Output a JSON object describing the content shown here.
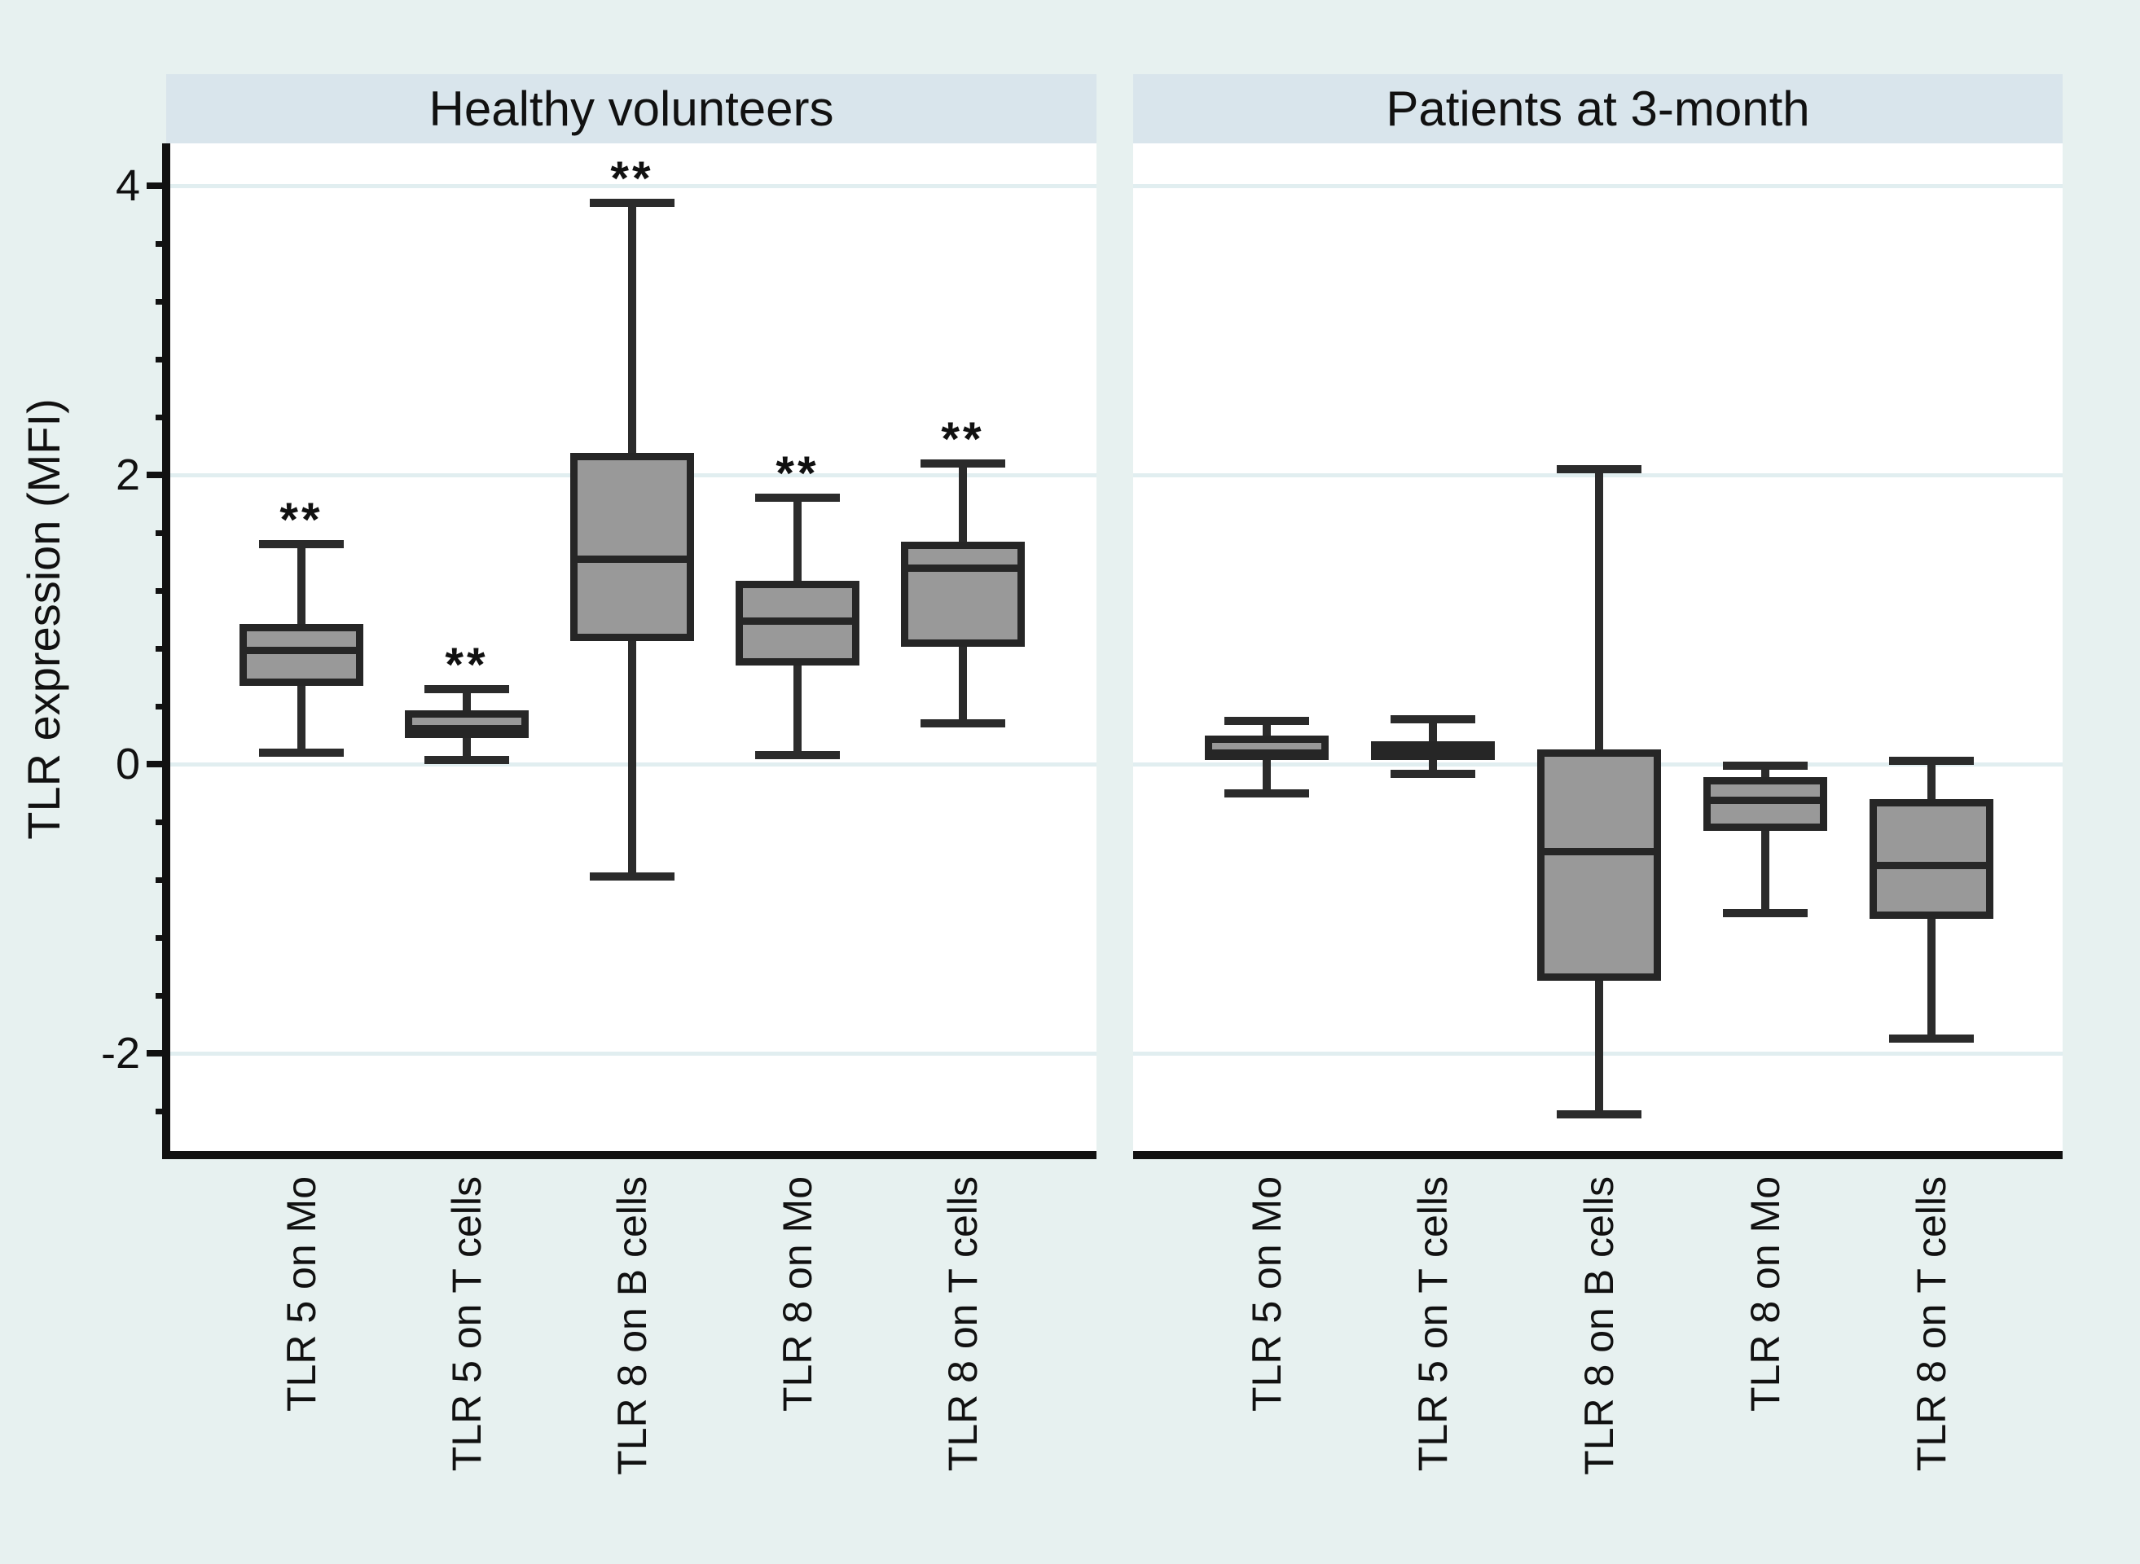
{
  "chart_data": {
    "type": "boxplot",
    "title": "",
    "ylabel": "TLR expression (MFI)",
    "ylim": [
      -2.7,
      4.3
    ],
    "y_major_ticks": [
      4,
      2,
      0,
      -2
    ],
    "y_minor_ticks": [
      3.6,
      3.2,
      2.8,
      2.4,
      1.6,
      1.2,
      0.8,
      0.4,
      -0.4,
      -0.8,
      -1.2,
      -1.6,
      -2.4
    ],
    "grid": "horizontal-major-only",
    "legend": "none",
    "categories": [
      "TLR 5 on Mo",
      "TLR 5 on T cells",
      "TLR 8 on B cells",
      "TLR 8 on Mo",
      "TLR 8 on T cells"
    ],
    "panels": [
      {
        "title": "Healthy volunteers",
        "boxes": [
          {
            "category": "TLR 5 on Mo",
            "whisker_low": 0.08,
            "q1": 0.54,
            "median": 0.79,
            "q3": 0.97,
            "whisker_high": 1.52,
            "annotation": "**"
          },
          {
            "category": "TLR 5 on T cells",
            "whisker_low": 0.03,
            "q1": 0.18,
            "median": 0.25,
            "q3": 0.37,
            "whisker_high": 0.52,
            "annotation": "**"
          },
          {
            "category": "TLR 8 on B cells",
            "whisker_low": -0.78,
            "q1": 0.85,
            "median": 1.42,
            "q3": 2.15,
            "whisker_high": 3.88,
            "annotation": "**"
          },
          {
            "category": "TLR 8 on Mo",
            "whisker_low": 0.06,
            "q1": 0.68,
            "median": 0.99,
            "q3": 1.27,
            "whisker_high": 1.84,
            "annotation": "**"
          },
          {
            "category": "TLR 8 on T cells",
            "whisker_low": 0.28,
            "q1": 0.81,
            "median": 1.36,
            "q3": 1.54,
            "whisker_high": 2.08,
            "annotation": "**"
          }
        ]
      },
      {
        "title": "Patients at 3-month",
        "boxes": [
          {
            "category": "TLR 5 on Mo",
            "whisker_low": -0.2,
            "q1": 0.03,
            "median": 0.08,
            "q3": 0.2,
            "whisker_high": 0.3,
            "annotation": ""
          },
          {
            "category": "TLR 5 on T cells",
            "whisker_low": -0.07,
            "q1": 0.03,
            "median": 0.1,
            "q3": 0.16,
            "whisker_high": 0.31,
            "annotation": ""
          },
          {
            "category": "TLR 8 on B cells",
            "whisker_low": -2.42,
            "q1": -1.5,
            "median": -0.6,
            "q3": 0.1,
            "whisker_high": 2.04,
            "annotation": ""
          },
          {
            "category": "TLR 8 on Mo",
            "whisker_low": -1.03,
            "q1": -0.46,
            "median": -0.25,
            "q3": -0.09,
            "whisker_high": -0.01,
            "annotation": ""
          },
          {
            "category": "TLR 8 on T cells",
            "whisker_low": -1.9,
            "q1": -1.07,
            "median": -0.7,
            "q3": -0.24,
            "whisker_high": 0.02,
            "annotation": ""
          }
        ]
      }
    ],
    "colors": {
      "background": "#e7f1f0",
      "header_band": "#d9e5ec",
      "plot_background": "#ffffff",
      "gridline": "#e1eef0",
      "box_fill": "#999999",
      "box_border": "#262626",
      "whisker": "#2b2b2b",
      "axis": "#111111"
    }
  }
}
